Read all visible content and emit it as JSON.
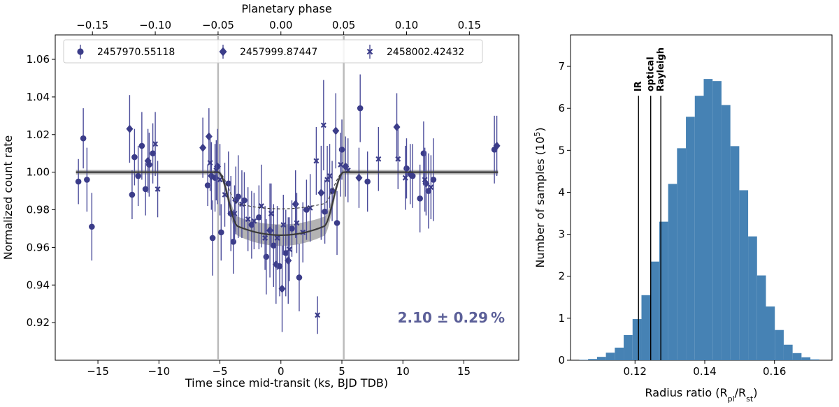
{
  "chart_data": [
    {
      "type": "scatter",
      "xlabel": "Time since mid-transit (ks, BJD TDB)",
      "ylabel": "Normalized count rate",
      "x2label": "Planetary phase",
      "xlim": [
        -18.5,
        19.5
      ],
      "ylim": [
        0.9,
        1.073
      ],
      "xticks": [
        -15,
        -10,
        -5,
        0,
        5,
        10,
        15
      ],
      "xtick_labels": [
        "−15",
        "−10",
        "−5",
        "0",
        "5",
        "10",
        "15"
      ],
      "yticks": [
        0.92,
        0.94,
        0.96,
        0.98,
        1.0,
        1.02,
        1.04,
        1.06
      ],
      "ytick_labels": [
        "0.92",
        "0.94",
        "0.96",
        "0.98",
        "1.00",
        "1.02",
        "1.04",
        "1.06"
      ],
      "x2ticks": [
        -0.15,
        -0.1,
        -0.05,
        0.0,
        0.05,
        0.1,
        0.15
      ],
      "x2tick_labels": [
        "−0.15",
        "−0.10",
        "−0.05",
        "0.00",
        "0.05",
        "0.10",
        "0.15"
      ],
      "ks_per_phase": 103.0,
      "transit_edges": [
        -5.15,
        5.15
      ],
      "ingress_duration_ks": 1.6,
      "model_depth_solid": 0.0335,
      "model_depth_dashed": 0.0195,
      "annotation": "2.10 ± 0.29 %",
      "legend_position": "top",
      "series": [
        {
          "name": "2457970.55118",
          "marker": "circle",
          "x": [
            -16.6,
            -16.2,
            -15.9,
            -15.5,
            -12.2,
            -12.0,
            -11.7,
            -11.4,
            -11.1,
            -10.8,
            -10.5,
            -6.0,
            -5.6,
            -5.4,
            -4.9,
            -4.3,
            -3.9,
            -3.5,
            -3.0,
            -2.4,
            -1.8,
            -1.2,
            -0.6,
            -0.1,
            0.4,
            0.9,
            1.5,
            2.1,
            3.6,
            4.2,
            4.6,
            5.0,
            6.5,
            7.1,
            10.3,
            10.8,
            11.4,
            11.7,
            12.1,
            12.5,
            17.5
          ],
          "y": [
            0.995,
            1.018,
            0.996,
            0.971,
            0.988,
            1.008,
            0.998,
            1.014,
            0.991,
            1.004,
            1.01,
            0.993,
            0.965,
            0.997,
            0.968,
            0.994,
            0.963,
            0.987,
            0.985,
            0.972,
            0.976,
            0.955,
            0.961,
            0.95,
            0.957,
            0.97,
            0.944,
            0.98,
            0.979,
            0.99,
            0.973,
            1.012,
            1.034,
            0.995,
            1.002,
            0.998,
            0.986,
            1.01,
            0.99,
            0.996,
            1.012
          ],
          "err": [
            0.012,
            0.016,
            0.017,
            0.018,
            0.013,
            0.015,
            0.016,
            0.018,
            0.014,
            0.017,
            0.016,
            0.011,
            0.02,
            0.018,
            0.015,
            0.017,
            0.017,
            0.022,
            0.015,
            0.018,
            0.017,
            0.02,
            0.022,
            0.016,
            0.023,
            0.015,
            0.018,
            0.016,
            0.017,
            0.016,
            0.017,
            0.016,
            0.018,
            0.016,
            0.016,
            0.017,
            0.018,
            0.017,
            0.02,
            0.022,
            0.018
          ]
        },
        {
          "name": "2457999.87447",
          "marker": "diamond",
          "x": [
            -12.4,
            -10.9,
            -6.4,
            -5.9,
            -5.7,
            -5.2,
            -4.1,
            -3.7,
            -0.9,
            -0.4,
            0.1,
            0.6,
            1.2,
            3.3,
            4.5,
            5.3,
            6.4,
            9.5,
            10.6,
            11.9,
            17.7
          ],
          "y": [
            1.023,
            1.006,
            1.013,
            1.019,
            0.998,
            1.003,
            0.978,
            0.985,
            0.969,
            0.951,
            0.938,
            0.953,
            0.983,
            0.989,
            1.022,
            1.003,
            0.997,
            1.024,
            0.999,
            0.994,
            1.014
          ],
          "err": [
            0.018,
            0.017,
            0.016,
            0.015,
            0.018,
            0.02,
            0.02,
            0.018,
            0.025,
            0.021,
            0.023,
            0.023,
            0.018,
            0.025,
            0.02,
            0.016,
            0.016,
            0.018,
            0.016,
            0.017,
            0.016
          ]
        },
        {
          "name": "2458002.42432",
          "marker": "x",
          "x": [
            -10.3,
            -10.1,
            -5.8,
            -5.3,
            -5.0,
            -4.6,
            -3.8,
            -3.2,
            -2.7,
            -2.2,
            -1.6,
            -1.3,
            -0.8,
            -0.3,
            0.2,
            0.7,
            1.3,
            1.8,
            2.4,
            2.9,
            3.0,
            3.5,
            3.8,
            4.0,
            4.9,
            5.5,
            8.0,
            9.6,
            10.2,
            11.8,
            12.3
          ],
          "y": [
            1.015,
            0.991,
            1.005,
            1.001,
            0.996,
            0.988,
            0.978,
            0.983,
            0.975,
            0.974,
            0.982,
            0.965,
            0.978,
            0.965,
            0.972,
            0.959,
            0.973,
            0.968,
            0.981,
            1.006,
            0.924,
            1.025,
            0.996,
            0.998,
            1.004,
            1.001,
            1.007,
            1.007,
            0.997,
            0.996,
            0.992
          ],
          "err": [
            0.017,
            0.015,
            0.015,
            0.016,
            0.019,
            0.017,
            0.015,
            0.018,
            0.017,
            0.015,
            0.022,
            0.017,
            0.016,
            0.017,
            0.016,
            0.017,
            0.016,
            0.016,
            0.018,
            0.018,
            0.01,
            0.024,
            0.018,
            0.017,
            0.017,
            0.017,
            0.017,
            0.016,
            0.017,
            0.017,
            0.017
          ]
        }
      ]
    },
    {
      "type": "bar",
      "xlabel": "Radius ratio (R",
      "xlabel_sub1": "pl",
      "xlabel_mid": "/R",
      "xlabel_sub2": "st",
      "xlabel_end": ")",
      "ylabel": "Number of samples (10",
      "ylabel_sup": "5",
      "ylabel_end": ")",
      "xlim": [
        0.1015,
        0.1765
      ],
      "ylim": [
        0,
        7.75
      ],
      "xticks": [
        0.12,
        0.14,
        0.16
      ],
      "xtick_labels": [
        "0.12",
        "0.14",
        "0.16"
      ],
      "yticks": [
        0,
        1,
        2,
        3,
        4,
        5,
        6,
        7
      ],
      "ytick_labels": [
        "0",
        "1",
        "2",
        "3",
        "4",
        "5",
        "6",
        "7"
      ],
      "bin_start": 0.104,
      "bin_width": 0.00255,
      "values": [
        0.01,
        0.03,
        0.08,
        0.18,
        0.3,
        0.6,
        0.98,
        1.55,
        2.35,
        3.3,
        4.2,
        5.05,
        5.8,
        6.3,
        6.7,
        6.65,
        6.08,
        5.1,
        4.05,
        2.95,
        2.02,
        1.28,
        0.72,
        0.37,
        0.17,
        0.07,
        0.02
      ],
      "bar_color": "#4682b4",
      "vlines": [
        {
          "x": 0.121,
          "label": "IR"
        },
        {
          "x": 0.1245,
          "label": "optical"
        },
        {
          "x": 0.1274,
          "label": "Rayleigh"
        }
      ],
      "vline_top": 6.3
    }
  ]
}
